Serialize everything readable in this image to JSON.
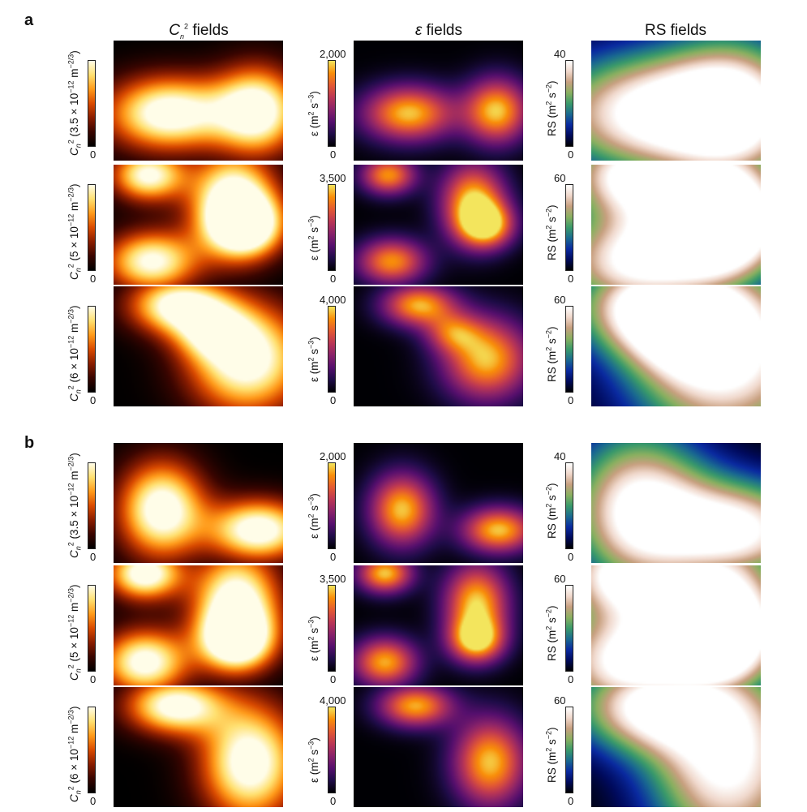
{
  "panels": [
    "a",
    "b"
  ],
  "columns": {
    "cn2": {
      "title_html": "<i>C</i><sub style=\"font-style:italic\">n</sub><sup>2</sup> fields",
      "label_html_a": [
        "<i>C</i><sub style=\"font-style:italic\">n</sub><sup>2</sup> (3.5 × 10<sup>−12</sup> m<sup>−2/3</sup>)",
        "<i>C</i><sub style=\"font-style:italic\">n</sub><sup>2</sup> (5 × 10<sup>−12</sup> m<sup>−2/3</sup>)",
        "<i>C</i><sub style=\"font-style:italic\">n</sub><sup>2</sup> (6 × 10<sup>−12</sup> m<sup>−2/3</sup>)"
      ]
    },
    "eps": {
      "title_html": "<i>ε</i> fields",
      "label_html": "ε (m<sup>2</sup> s<sup>−3</sup>)"
    },
    "rs": {
      "title": "RS fields",
      "label_html": "RS (m<sup>2</sup> s<sup>−2</sup>)"
    }
  },
  "rows": [
    {
      "cn2_max": "",
      "eps_max": "2,000",
      "rs_max": "40",
      "min": "0"
    },
    {
      "cn2_max": "",
      "eps_max": "3,500",
      "rs_max": "60",
      "min": "0"
    },
    {
      "cn2_max": "",
      "eps_max": "4,000",
      "rs_max": "60",
      "min": "0"
    }
  ],
  "colormaps": {
    "afmhot": [
      "#000000",
      "#3a0500",
      "#8a1d00",
      "#d94a00",
      "#ff9a1a",
      "#ffe070",
      "#fffde8"
    ],
    "plasma_dark": [
      "#000004",
      "#1f0c48",
      "#550f6d",
      "#88226a",
      "#ba3655",
      "#e35933",
      "#f98e09",
      "#f3e55d"
    ],
    "rs": [
      "#000000",
      "#000a5c",
      "#0a2aa0",
      "#1a6a90",
      "#3a9a6a",
      "#8ab060",
      "#c8a080",
      "#f0d8cc",
      "#ffffff"
    ]
  }
}
